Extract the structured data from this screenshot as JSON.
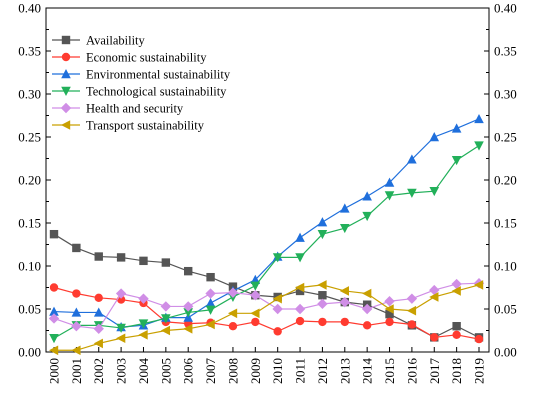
{
  "chart_data": {
    "type": "line",
    "title": "",
    "xlabel": "",
    "ylabel": "",
    "ylim": [
      0,
      0.4
    ],
    "y_ticks": [
      "0.00",
      "0.05",
      "0.10",
      "0.15",
      "0.20",
      "0.25",
      "0.30",
      "0.35",
      "0.40"
    ],
    "right_axis_mirrors_left": true,
    "x_tick_rotation": "vertical",
    "legend_position": "top-left",
    "grid": false,
    "categories": [
      "2000",
      "2001",
      "2002",
      "2003",
      "2004",
      "2005",
      "2006",
      "2007",
      "2008",
      "2009",
      "2010",
      "2011",
      "2012",
      "2013",
      "2014",
      "2015",
      "2016",
      "2017",
      "2018",
      "2019"
    ],
    "series": [
      {
        "name": "Availability",
        "color": "#555555",
        "marker": "square",
        "values": [
          0.137,
          0.121,
          0.111,
          0.11,
          0.106,
          0.104,
          0.094,
          0.087,
          0.076,
          0.066,
          0.064,
          0.071,
          0.066,
          0.058,
          0.055,
          0.044,
          0.031,
          0.017,
          0.03,
          0.017
        ]
      },
      {
        "name": "Economic sustainability",
        "color": "#ff3b30",
        "marker": "circle",
        "values": [
          0.075,
          0.068,
          0.063,
          0.061,
          0.057,
          0.035,
          0.033,
          0.034,
          0.03,
          0.035,
          0.024,
          0.036,
          0.035,
          0.035,
          0.031,
          0.035,
          0.032,
          0.017,
          0.02,
          0.015
        ]
      },
      {
        "name": "Environmental sustainability",
        "color": "#1f6fdc",
        "marker": "triangle-up",
        "values": [
          0.047,
          0.046,
          0.046,
          0.029,
          0.031,
          0.04,
          0.04,
          0.057,
          0.071,
          0.084,
          0.111,
          0.133,
          0.151,
          0.167,
          0.181,
          0.197,
          0.224,
          0.25,
          0.26,
          0.271
        ]
      },
      {
        "name": "Technological sustainability",
        "color": "#22b05a",
        "marker": "triangle-down",
        "values": [
          0.016,
          0.031,
          0.031,
          0.028,
          0.033,
          0.039,
          0.046,
          0.049,
          0.064,
          0.077,
          0.11,
          0.11,
          0.137,
          0.144,
          0.158,
          0.182,
          0.185,
          0.187,
          0.223,
          0.24
        ]
      },
      {
        "name": "Health and security",
        "color": "#d08ee6",
        "marker": "diamond",
        "values": [
          0.039,
          0.03,
          0.027,
          0.068,
          0.062,
          0.053,
          0.053,
          0.068,
          0.069,
          0.066,
          0.05,
          0.05,
          0.056,
          0.058,
          0.05,
          0.059,
          0.062,
          0.072,
          0.079,
          0.08
        ]
      },
      {
        "name": "Transport sustainability",
        "color": "#c9a000",
        "marker": "triangle-left",
        "values": [
          0.002,
          0.002,
          0.01,
          0.016,
          0.02,
          0.025,
          0.027,
          0.032,
          0.045,
          0.045,
          0.062,
          0.075,
          0.078,
          0.071,
          0.068,
          0.05,
          0.048,
          0.064,
          0.071,
          0.078
        ]
      }
    ]
  }
}
